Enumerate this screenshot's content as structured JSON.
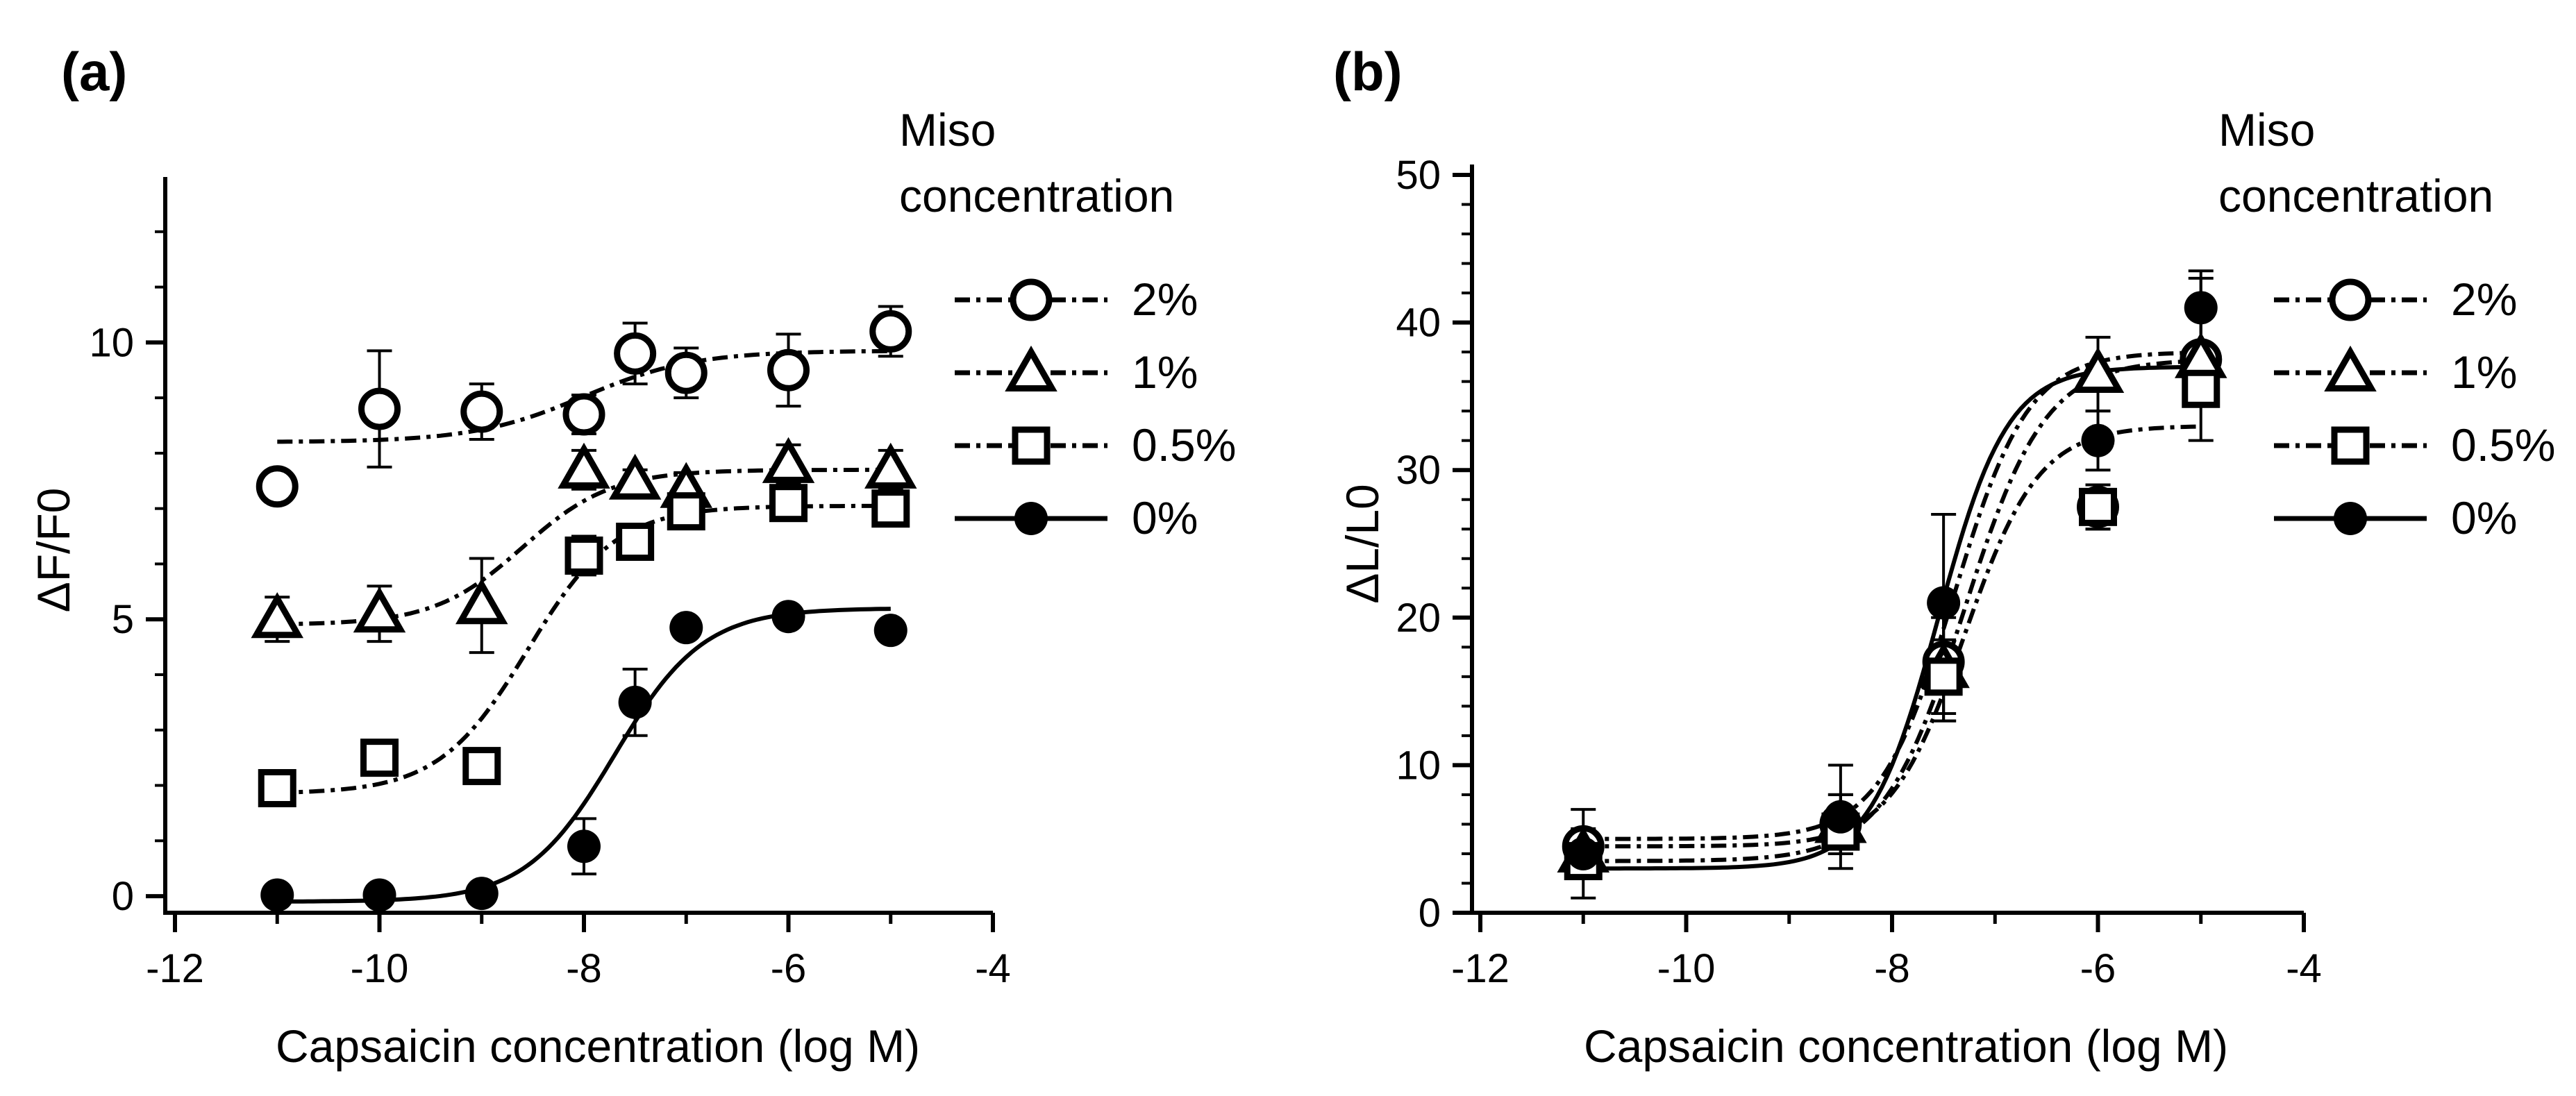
{
  "chart_data": [
    {
      "panel_label": "(a)",
      "type": "scatter",
      "xlabel": "Capsaicin concentration (log M)",
      "ylabel": "ΔF/F0",
      "xlim": [
        -12,
        -4
      ],
      "ylim": [
        -0.3,
        12.8
      ],
      "xticks": [
        -12,
        -10,
        -8,
        -6,
        -4
      ],
      "xtick_labels": [
        "-12",
        "-10",
        "-8",
        "-6",
        "-4"
      ],
      "yticks": [
        0,
        5,
        10
      ],
      "ytick_labels": [
        "0",
        "5",
        "10"
      ],
      "legend_title": [
        "Miso",
        "concentration"
      ],
      "series": [
        {
          "name": "2%",
          "marker": "open-circle",
          "line": "dash-dot",
          "x": [
            -11,
            -10,
            -9,
            -8,
            -7.5,
            -7,
            -6,
            -5
          ],
          "y": [
            7.4,
            8.8,
            8.75,
            8.7,
            9.8,
            9.45,
            9.5,
            10.2
          ],
          "err": [
            0,
            1.05,
            0.5,
            0.35,
            0.55,
            0.45,
            0.65,
            0.45
          ],
          "fit": {
            "bottom": 8.2,
            "top": 9.85,
            "logEC50": -8.0,
            "hill": 0.8
          }
        },
        {
          "name": "1%",
          "marker": "open-triangle",
          "line": "dash-dot",
          "x": [
            -11,
            -10,
            -9,
            -8,
            -7.5,
            -7,
            -6,
            -5
          ],
          "y": [
            5.0,
            5.1,
            5.25,
            7.7,
            7.5,
            7.35,
            7.8,
            7.7
          ],
          "err": [
            0.4,
            0.5,
            0.85,
            0.35,
            0.2,
            0.3,
            0.35,
            0.35
          ],
          "fit": {
            "bottom": 4.9,
            "top": 7.7,
            "logEC50": -8.6,
            "hill": 1.0
          }
        },
        {
          "name": "0.5%",
          "marker": "open-square",
          "line": "dash-dot",
          "x": [
            -11,
            -10,
            -9,
            -8,
            -7.5,
            -7,
            -6,
            -5
          ],
          "y": [
            1.95,
            2.5,
            2.35,
            6.15,
            6.4,
            6.95,
            7.1,
            7.0
          ],
          "err": [
            0.2,
            0.2,
            0.2,
            0.35,
            0.2,
            0.2,
            0.2,
            0.2
          ],
          "fit": {
            "bottom": 1.85,
            "top": 7.05,
            "logEC50": -8.55,
            "hill": 1.0
          }
        },
        {
          "name": "0%",
          "marker": "filled-circle",
          "line": "solid",
          "x": [
            -11,
            -10,
            -9,
            -8,
            -7.5,
            -7,
            -6,
            -5
          ],
          "y": [
            0.02,
            0.02,
            0.05,
            0.9,
            3.5,
            4.85,
            5.05,
            4.8
          ],
          "err": [
            0,
            0,
            0,
            0.5,
            0.6,
            0,
            0,
            0
          ],
          "fit": {
            "bottom": -0.1,
            "top": 5.2,
            "logEC50": -7.7,
            "hill": 1.0
          }
        }
      ]
    },
    {
      "panel_label": "(b)",
      "type": "scatter",
      "xlabel": "Capsaicin concentration (log M)",
      "ylabel": "ΔL/L0",
      "xlim": [
        -12,
        -4
      ],
      "ylim": [
        0,
        50
      ],
      "xticks": [
        -12,
        -10,
        -8,
        -6,
        -4
      ],
      "xtick_labels": [
        "-12",
        "-10",
        "-8",
        "-6",
        "-4"
      ],
      "yticks": [
        0,
        10,
        20,
        30,
        40,
        50
      ],
      "ytick_labels": [
        "0",
        "10",
        "20",
        "30",
        "40",
        "50"
      ],
      "legend_title": [
        "Miso",
        "concentration"
      ],
      "series": [
        {
          "name": "2%",
          "marker": "open-circle",
          "line": "dash-dot",
          "x": [
            -11,
            -8.5,
            -7.5,
            -6,
            -5
          ],
          "y": [
            4.5,
            6.0,
            17.0,
            27.5,
            37.5
          ],
          "err": [
            1.2,
            2.0,
            4.0,
            1.5,
            5.5
          ],
          "fit": {
            "bottom": 3.5,
            "top": 37.5,
            "logEC50": -7.3,
            "hill": 1.1
          }
        },
        {
          "name": "1%",
          "marker": "open-triangle",
          "line": "dash-dot",
          "x": [
            -11,
            -8.5,
            -7.5,
            -6,
            -5
          ],
          "y": [
            4.0,
            6.0,
            16.5,
            36.5,
            37.5
          ],
          "err": [
            1.0,
            2.0,
            3.5,
            2.5,
            3.0
          ],
          "fit": {
            "bottom": 5.0,
            "top": 38.0,
            "logEC50": -7.4,
            "hill": 1.2
          }
        },
        {
          "name": "0.5%",
          "marker": "open-square",
          "line": "dash-dot",
          "x": [
            -11,
            -8.5,
            -7.5,
            -6,
            -5
          ],
          "y": [
            3.5,
            5.5,
            16.0,
            27.5,
            35.5
          ],
          "err": [
            0.8,
            1.5,
            2.5,
            1.5,
            1.0
          ],
          "fit": {
            "bottom": 4.5,
            "top": 33.0,
            "logEC50": -7.3,
            "hill": 1.2
          }
        },
        {
          "name": "0%",
          "marker": "filled-circle",
          "line": "solid",
          "x": [
            -11,
            -8.5,
            -7.5,
            -6,
            -5
          ],
          "y": [
            4.0,
            6.5,
            21.0,
            32.0,
            41.0
          ],
          "err": [
            3.0,
            3.5,
            6.0,
            2.0,
            2.5
          ],
          "fit": {
            "bottom": 3.0,
            "top": 37.0,
            "logEC50": -7.55,
            "hill": 1.3
          }
        }
      ]
    }
  ]
}
